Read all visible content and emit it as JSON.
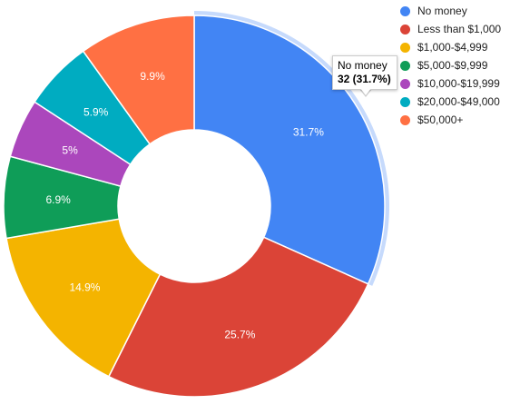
{
  "chart_data": {
    "type": "pie",
    "donut": true,
    "title": "",
    "legend_position": "top-right",
    "slices": [
      {
        "label": "No money",
        "count": 32,
        "percent": 31.7,
        "percent_label": "31.7%",
        "color": "#4285f4",
        "highlighted": true
      },
      {
        "label": "Less than $1,000",
        "percent": 25.7,
        "percent_label": "25.7%",
        "color": "#db4437"
      },
      {
        "label": "$1,000-$4,999",
        "percent": 14.9,
        "percent_label": "14.9%",
        "color": "#f4b400"
      },
      {
        "label": "$5,000-$9,999",
        "percent": 6.9,
        "percent_label": "6.9%",
        "color": "#0f9d58"
      },
      {
        "label": "$10,000-$19,999",
        "percent": 5.0,
        "percent_label": "5%",
        "color": "#ab47bc"
      },
      {
        "label": "$20,000-$49,000",
        "percent": 5.9,
        "percent_label": "5.9%",
        "color": "#00acc1"
      },
      {
        "label": "$50,000+",
        "percent": 9.9,
        "percent_label": "9.9%",
        "color": "#ff7043"
      }
    ]
  },
  "tooltip": {
    "name": "No money",
    "value": "32 (31.7%)"
  }
}
